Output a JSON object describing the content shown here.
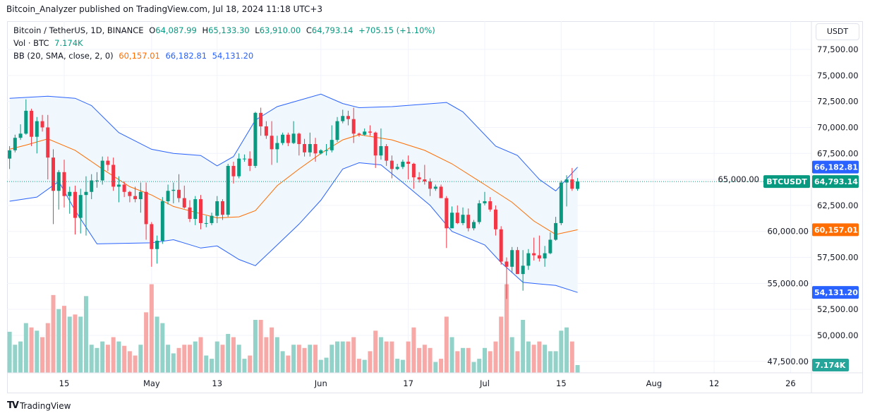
{
  "published_line": "Bitcoin_Analyzer published on TradingView.com, Jul 18, 2024 11:18 UTC+3",
  "legend": {
    "symbol": "Bitcoin / TetherUS, 1D, BINANCE",
    "o_label": "O",
    "o": "64,087.99",
    "h_label": "H",
    "h": "65,133.30",
    "l_label": "L",
    "l": "63,910.00",
    "c_label": "C",
    "c": "64,793.14",
    "change": "+705.15 (+1.10%)",
    "vol_label": "Vol · BTC",
    "vol": "7.174K",
    "bb_label": "BB (20, SMA, close, 2, 0)",
    "bb_basis": "60,157.01",
    "bb_upper": "66,182.81",
    "bb_lower": "54,131.20"
  },
  "currency_button": "USDT",
  "logo_text": "TradingView",
  "colors": {
    "up": "#089981",
    "down": "#f23645",
    "vol_up": "#92d2c8",
    "vol_down": "#f7a9a7",
    "basis": "#ff6d00",
    "band": "#2962ff",
    "band_fill": "#f0f7fd"
  },
  "chart_data": {
    "type": "candlestick",
    "title": "Bitcoin / TetherUS, 1D, BINANCE",
    "start_date": "2024-04-05",
    "ylim": [
      46500,
      80000
    ],
    "y_ticks": [
      47500,
      50000,
      52500,
      55000,
      57500,
      60000,
      62500,
      65000,
      67500,
      70000,
      72500,
      75000,
      77500
    ],
    "y_tick_labels": [
      "47,500.00",
      "50,000.00",
      "52,500.00",
      "55,000.00",
      "57,500.00",
      "60,000.00",
      "62,500.00",
      "65,000.00",
      "67,500.00",
      "70,000.00",
      "72,500.00",
      "75,000.00",
      "77,500.00"
    ],
    "x_ticks": [
      {
        "date": "2024-04-15",
        "label": "15"
      },
      {
        "date": "2024-05-01",
        "label": "May"
      },
      {
        "date": "2024-05-13",
        "label": "13"
      },
      {
        "date": "2024-06-01",
        "label": "Jun"
      },
      {
        "date": "2024-06-17",
        "label": "17"
      },
      {
        "date": "2024-07-01",
        "label": "Jul"
      },
      {
        "date": "2024-07-15",
        "label": "15"
      },
      {
        "date": "2024-08-01",
        "label": "Aug"
      },
      {
        "date": "2024-08-12",
        "label": "12"
      },
      {
        "date": "2024-08-26",
        "label": "26"
      }
    ],
    "grid": true,
    "ohlc": [
      [
        67000,
        68200,
        66000,
        67800
      ],
      [
        67800,
        69300,
        67600,
        69000
      ],
      [
        69000,
        70300,
        68800,
        69400
      ],
      [
        69400,
        72700,
        69300,
        71600
      ],
      [
        71600,
        71800,
        68200,
        69100
      ],
      [
        69100,
        71000,
        67500,
        70600
      ],
      [
        70600,
        71200,
        69600,
        70000
      ],
      [
        70000,
        71200,
        65000,
        67100
      ],
      [
        67100,
        67900,
        60700,
        63900
      ],
      [
        63900,
        65900,
        62100,
        65700
      ],
      [
        65700,
        66900,
        62300,
        63400
      ],
      [
        63400,
        64300,
        61700,
        63800
      ],
      [
        63800,
        64400,
        59700,
        61300
      ],
      [
        61300,
        64100,
        59800,
        63500
      ],
      [
        63500,
        65300,
        59600,
        63800
      ],
      [
        63800,
        65500,
        63100,
        64900
      ],
      [
        64900,
        65700,
        64200,
        64900
      ],
      [
        64900,
        67200,
        64500,
        66800
      ],
      [
        66800,
        67200,
        65800,
        66400
      ],
      [
        66400,
        67100,
        63900,
        64300
      ],
      [
        64300,
        65300,
        62800,
        64500
      ],
      [
        64500,
        64800,
        63300,
        63800
      ],
      [
        63800,
        63900,
        62800,
        63400
      ],
      [
        63400,
        64300,
        62800,
        63100
      ],
      [
        63100,
        64700,
        61800,
        63800
      ],
      [
        63800,
        64700,
        59200,
        60700
      ],
      [
        60700,
        60900,
        56600,
        58300
      ],
      [
        58300,
        59600,
        56900,
        59100
      ],
      [
        59100,
        63300,
        58800,
        62900
      ],
      [
        62900,
        64500,
        62600,
        63900
      ],
      [
        63900,
        64700,
        62700,
        64000
      ],
      [
        64000,
        65500,
        62800,
        63200
      ],
      [
        63200,
        64400,
        62200,
        62300
      ],
      [
        62300,
        63000,
        60900,
        61200
      ],
      [
        61200,
        63400,
        60600,
        63100
      ],
      [
        63100,
        63500,
        60200,
        60800
      ],
      [
        60800,
        61500,
        60400,
        60800
      ],
      [
        60800,
        61800,
        60600,
        61500
      ],
      [
        61500,
        63400,
        60800,
        62900
      ],
      [
        62900,
        63100,
        61100,
        61600
      ],
      [
        61600,
        66500,
        61400,
        66300
      ],
      [
        66300,
        66700,
        64600,
        65300
      ],
      [
        65300,
        67500,
        65100,
        67000
      ],
      [
        67000,
        67400,
        66700,
        67000
      ],
      [
        67000,
        67700,
        65800,
        66300
      ],
      [
        66300,
        71500,
        66100,
        71400
      ],
      [
        71400,
        71900,
        69200,
        70100
      ],
      [
        70100,
        70600,
        68900,
        69200
      ],
      [
        69200,
        70600,
        66400,
        67900
      ],
      [
        67900,
        69200,
        66600,
        68500
      ],
      [
        68500,
        69500,
        68300,
        69300
      ],
      [
        69300,
        69500,
        68200,
        68500
      ],
      [
        68500,
        70600,
        68400,
        69400
      ],
      [
        69400,
        69500,
        67300,
        68400
      ],
      [
        68400,
        68900,
        67200,
        67600
      ],
      [
        67600,
        69500,
        67200,
        68400
      ],
      [
        68400,
        69000,
        66700,
        67500
      ],
      [
        67500,
        67900,
        67400,
        67800
      ],
      [
        67800,
        68400,
        67300,
        67800
      ],
      [
        67800,
        70200,
        67600,
        68800
      ],
      [
        68800,
        71000,
        68600,
        70600
      ],
      [
        70600,
        71700,
        70400,
        71100
      ],
      [
        71100,
        71600,
        70200,
        70800
      ],
      [
        70800,
        71900,
        68500,
        69400
      ],
      [
        69400,
        69500,
        69100,
        69300
      ],
      [
        69300,
        69900,
        69200,
        69600
      ],
      [
        69600,
        70200,
        69200,
        69500
      ],
      [
        69500,
        69600,
        66100,
        67300
      ],
      [
        67300,
        69900,
        66900,
        68200
      ],
      [
        68200,
        68400,
        66300,
        66800
      ],
      [
        66800,
        67300,
        65100,
        66000
      ],
      [
        66000,
        66500,
        65900,
        66200
      ],
      [
        66200,
        66900,
        66000,
        66700
      ],
      [
        66700,
        67300,
        65000,
        66500
      ],
      [
        66500,
        66600,
        64100,
        65200
      ],
      [
        65200,
        65700,
        64700,
        65000
      ],
      [
        65000,
        66400,
        64500,
        64800
      ],
      [
        64800,
        65100,
        63400,
        64100
      ],
      [
        64100,
        64500,
        63900,
        64300
      ],
      [
        64300,
        64500,
        63200,
        63200
      ],
      [
        63200,
        63400,
        58400,
        60300
      ],
      [
        60300,
        62400,
        60300,
        61800
      ],
      [
        61800,
        62500,
        60700,
        60800
      ],
      [
        60800,
        62300,
        60600,
        61600
      ],
      [
        61600,
        62200,
        60000,
        60300
      ],
      [
        60300,
        61100,
        60100,
        60900
      ],
      [
        60900,
        63000,
        60700,
        62700
      ],
      [
        62700,
        63800,
        62500,
        62900
      ],
      [
        62900,
        63300,
        61900,
        62100
      ],
      [
        62100,
        62500,
        59600,
        60200
      ],
      [
        60200,
        60500,
        56800,
        57100
      ],
      [
        57100,
        57500,
        53500,
        56600
      ],
      [
        56600,
        58500,
        56000,
        58200
      ],
      [
        58200,
        58500,
        55900,
        55900
      ],
      [
        55900,
        58200,
        54300,
        56700
      ],
      [
        56700,
        58300,
        56300,
        57900
      ],
      [
        57900,
        59400,
        57200,
        57700
      ],
      [
        57700,
        59600,
        57100,
        57400
      ],
      [
        57400,
        58600,
        56600,
        57900
      ],
      [
        57900,
        59900,
        57800,
        59200
      ],
      [
        59200,
        61400,
        59100,
        60800
      ],
      [
        60800,
        64900,
        60600,
        64700
      ],
      [
        64700,
        65400,
        62400,
        65000
      ],
      [
        65000,
        66100,
        63900,
        64100
      ],
      [
        64087.99,
        65133.3,
        63910.0,
        64793.14
      ]
    ],
    "volume_k": [
      38,
      26,
      29,
      46,
      42,
      39,
      33,
      46,
      72,
      59,
      62,
      52,
      54,
      52,
      71,
      26,
      23,
      29,
      26,
      33,
      29,
      25,
      20,
      16,
      26,
      56,
      82,
      52,
      46,
      26,
      18,
      23,
      26,
      26,
      29,
      33,
      16,
      13,
      29,
      26,
      36,
      33,
      26,
      13,
      16,
      49,
      49,
      33,
      42,
      33,
      20,
      16,
      26,
      26,
      23,
      26,
      26,
      12,
      14,
      26,
      29,
      29,
      29,
      33,
      13,
      12,
      20,
      39,
      33,
      29,
      29,
      13,
      12,
      29,
      42,
      23,
      26,
      23,
      10,
      13,
      52,
      33,
      20,
      23,
      23,
      10,
      13,
      23,
      20,
      29,
      52,
      82,
      33,
      20,
      49,
      29,
      26,
      29,
      26,
      20,
      20,
      39,
      42,
      29,
      7.174
    ],
    "bb_upper": [
      [
        "2024-04-05",
        72800
      ],
      [
        "2024-04-12",
        73000
      ],
      [
        "2024-04-17",
        72800
      ],
      [
        "2024-04-20",
        72100
      ],
      [
        "2024-04-25",
        69500
      ],
      [
        "2024-05-01",
        67900
      ],
      [
        "2024-05-05",
        67500
      ],
      [
        "2024-05-10",
        67300
      ],
      [
        "2024-05-13",
        66300
      ],
      [
        "2024-05-16",
        67200
      ],
      [
        "2024-05-20",
        70700
      ],
      [
        "2024-05-24",
        72000
      ],
      [
        "2024-06-01",
        73200
      ],
      [
        "2024-06-05",
        72300
      ],
      [
        "2024-06-08",
        71900
      ],
      [
        "2024-06-14",
        72000
      ],
      [
        "2024-06-24",
        72400
      ],
      [
        "2024-06-27",
        71500
      ],
      [
        "2024-07-03",
        68200
      ],
      [
        "2024-07-07",
        67300
      ],
      [
        "2024-07-11",
        65000
      ],
      [
        "2024-07-14",
        63900
      ],
      [
        "2024-07-18",
        66182.81
      ]
    ],
    "bb_basis": [
      [
        "2024-04-05",
        67900
      ],
      [
        "2024-04-08",
        68300
      ],
      [
        "2024-04-12",
        68900
      ],
      [
        "2024-04-17",
        67800
      ],
      [
        "2024-04-22",
        66000
      ],
      [
        "2024-04-27",
        64300
      ],
      [
        "2024-05-01",
        63500
      ],
      [
        "2024-05-05",
        62400
      ],
      [
        "2024-05-10",
        61700
      ],
      [
        "2024-05-13",
        61300
      ],
      [
        "2024-05-17",
        61400
      ],
      [
        "2024-05-20",
        62000
      ],
      [
        "2024-05-24",
        64400
      ],
      [
        "2024-05-28",
        66000
      ],
      [
        "2024-06-01",
        67500
      ],
      [
        "2024-06-05",
        68800
      ],
      [
        "2024-06-08",
        69300
      ],
      [
        "2024-06-14",
        68800
      ],
      [
        "2024-06-20",
        67800
      ],
      [
        "2024-06-25",
        66500
      ],
      [
        "2024-07-01",
        64500
      ],
      [
        "2024-07-06",
        62800
      ],
      [
        "2024-07-10",
        61000
      ],
      [
        "2024-07-14",
        59700
      ],
      [
        "2024-07-18",
        60157.01
      ]
    ],
    "bb_lower": [
      [
        "2024-04-05",
        62900
      ],
      [
        "2024-04-10",
        63300
      ],
      [
        "2024-04-14",
        64800
      ],
      [
        "2024-04-17",
        62000
      ],
      [
        "2024-04-21",
        58800
      ],
      [
        "2024-05-01",
        58900
      ],
      [
        "2024-05-05",
        59200
      ],
      [
        "2024-05-10",
        58400
      ],
      [
        "2024-05-13",
        58600
      ],
      [
        "2024-05-17",
        57300
      ],
      [
        "2024-05-20",
        56700
      ],
      [
        "2024-05-24",
        58700
      ],
      [
        "2024-05-28",
        60700
      ],
      [
        "2024-06-01",
        63000
      ],
      [
        "2024-06-05",
        66000
      ],
      [
        "2024-06-08",
        66600
      ],
      [
        "2024-06-12",
        66400
      ],
      [
        "2024-06-16",
        64700
      ],
      [
        "2024-06-21",
        62500
      ],
      [
        "2024-06-25",
        60000
      ],
      [
        "2024-07-01",
        58700
      ],
      [
        "2024-07-04",
        57000
      ],
      [
        "2024-07-08",
        55100
      ],
      [
        "2024-07-14",
        54800
      ],
      [
        "2024-07-18",
        54131.2
      ]
    ],
    "price_labels": {
      "symbol_tag": "BTCUSDT",
      "last": "64,793.14",
      "upper": "66,182.81",
      "basis": "60,157.01",
      "lower": "54,131.20",
      "volume": "7.174K"
    }
  }
}
